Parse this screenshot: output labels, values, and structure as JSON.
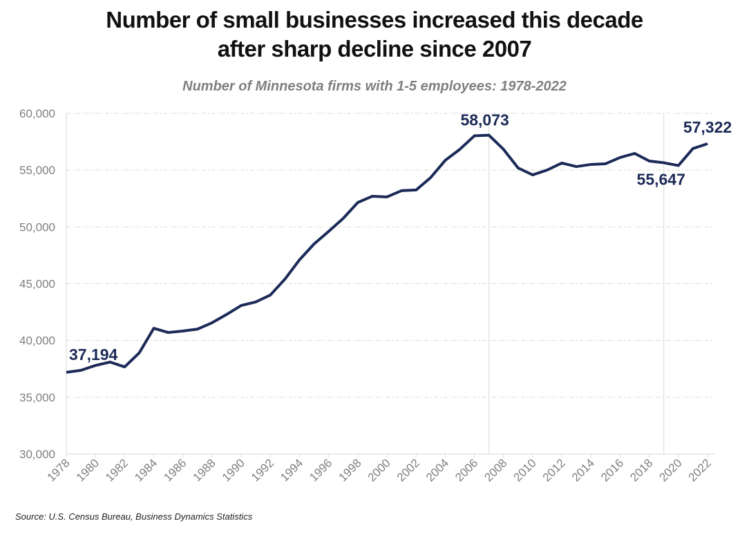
{
  "chart_data": {
    "type": "line",
    "title": "Number of small businesses increased this decade after sharp decline since 2007",
    "title_lines": [
      "Number of small businesses increased this decade",
      "after sharp decline since 2007"
    ],
    "subtitle": "Number of Minnesota firms with 1-5 employees: 1978-2022",
    "source": "Source: U.S. Census Bureau, Business Dynamics Statistics",
    "xlabel": "",
    "ylabel": "",
    "x": [
      1978,
      1979,
      1980,
      1981,
      1982,
      1983,
      1984,
      1985,
      1986,
      1987,
      1988,
      1989,
      1990,
      1991,
      1992,
      1993,
      1994,
      1995,
      1996,
      1997,
      1998,
      1999,
      2000,
      2001,
      2002,
      2003,
      2004,
      2005,
      2006,
      2007,
      2008,
      2009,
      2010,
      2011,
      2012,
      2013,
      2014,
      2015,
      2016,
      2017,
      2018,
      2019,
      2020,
      2021,
      2022
    ],
    "series": [
      {
        "values": [
          37194,
          37370,
          37800,
          38100,
          37670,
          38900,
          41070,
          40700,
          40830,
          41000,
          41560,
          42290,
          43080,
          43390,
          44000,
          45400,
          47100,
          48500,
          49600,
          50750,
          52150,
          52700,
          52640,
          53190,
          53250,
          54340,
          55860,
          56830,
          58020,
          58073,
          56830,
          55190,
          54580,
          55010,
          55620,
          55310,
          55500,
          55560,
          56110,
          56470,
          55800,
          55647,
          55400,
          56900,
          57322
        ]
      }
    ],
    "ylim": [
      30000,
      60000
    ],
    "yticks": [
      "30,000",
      "35,000",
      "40,000",
      "45,000",
      "50,000",
      "55,000",
      "60,000"
    ],
    "xticks": [
      "1978",
      "1980",
      "1982",
      "1984",
      "1986",
      "1988",
      "1990",
      "1992",
      "1994",
      "1996",
      "1998",
      "2000",
      "2002",
      "2004",
      "2006",
      "2008",
      "2010",
      "2012",
      "2014",
      "2016",
      "2018",
      "2020",
      "2022"
    ],
    "annotations": [
      {
        "year": 1978,
        "text": "37,194"
      },
      {
        "year": 2007,
        "text": "58,073"
      },
      {
        "year": 2019,
        "text": "55,647"
      },
      {
        "year": 2022,
        "text": "57,322"
      }
    ],
    "vertical_reference_years": [
      2007,
      2019
    ],
    "line_color": "#1b2a57",
    "grid": "horizontal dashed"
  }
}
